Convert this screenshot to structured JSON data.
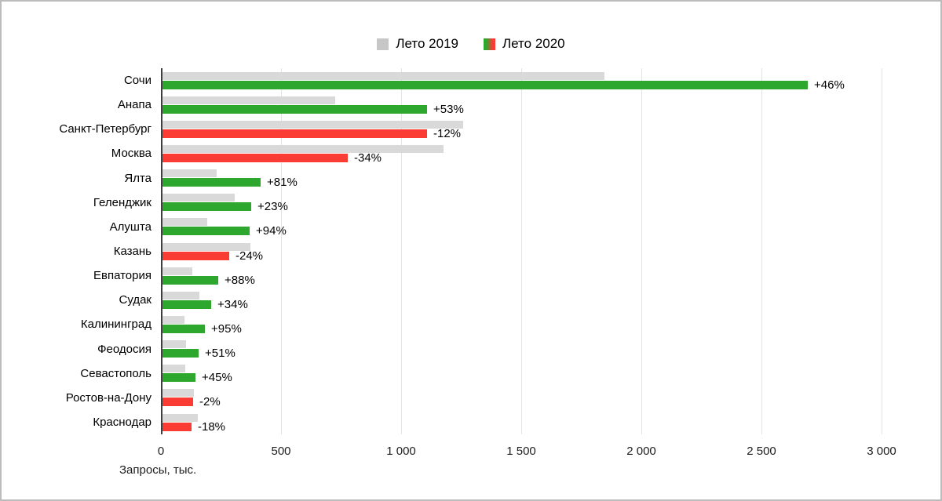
{
  "colors": {
    "bar_2019": "#d9d9d9",
    "legend_2019_swatch": "#c7c7c7",
    "bar_2020_positive": "#2ea72e",
    "bar_2020_negative": "#fb3c35",
    "gridline": "#e3e3e3",
    "axis_line": "#3f3f3f",
    "text": "#000000",
    "frame_border": "#bcbcbc",
    "background": "#ffffff"
  },
  "chart_data": {
    "type": "bar",
    "orientation": "horizontal",
    "title": "",
    "xlabel": "Запросы, тыс.",
    "xlim": [
      0,
      3000
    ],
    "grid": true,
    "legend_position": "top-center",
    "categories": [
      "Сочи",
      "Анапа",
      "Санкт-Петербург",
      "Москва",
      "Ялта",
      "Геленджик",
      "Алушта",
      "Казань",
      "Евпатория",
      "Судак",
      "Калининград",
      "Феодосия",
      "Севастополь",
      "Ростов-на-Дону",
      "Краснодар"
    ],
    "series": [
      {
        "name": "Лето 2019",
        "values": [
          1840,
          720,
          1250,
          1170,
          225,
          300,
          187,
          367,
          123,
          152,
          91,
          99,
          95,
          130,
          146
        ]
      },
      {
        "name": "Лето 2020",
        "values": [
          2686,
          1102,
          1100,
          772,
          407,
          369,
          363,
          279,
          231,
          204,
          177,
          149,
          138,
          127,
          120
        ]
      }
    ],
    "change_labels": [
      "+46%",
      "+53%",
      "-12%",
      "-34%",
      "+81%",
      "+23%",
      "+94%",
      "-24%",
      "+88%",
      "+34%",
      "+95%",
      "+51%",
      "+45%",
      "-2%",
      "-18%"
    ],
    "x_ticks": [
      0,
      500,
      1000,
      1500,
      2000,
      2500,
      3000
    ],
    "x_tick_labels": [
      "0",
      "500",
      "1 000",
      "1 500",
      "2 000",
      "2 500",
      "3 000"
    ]
  }
}
